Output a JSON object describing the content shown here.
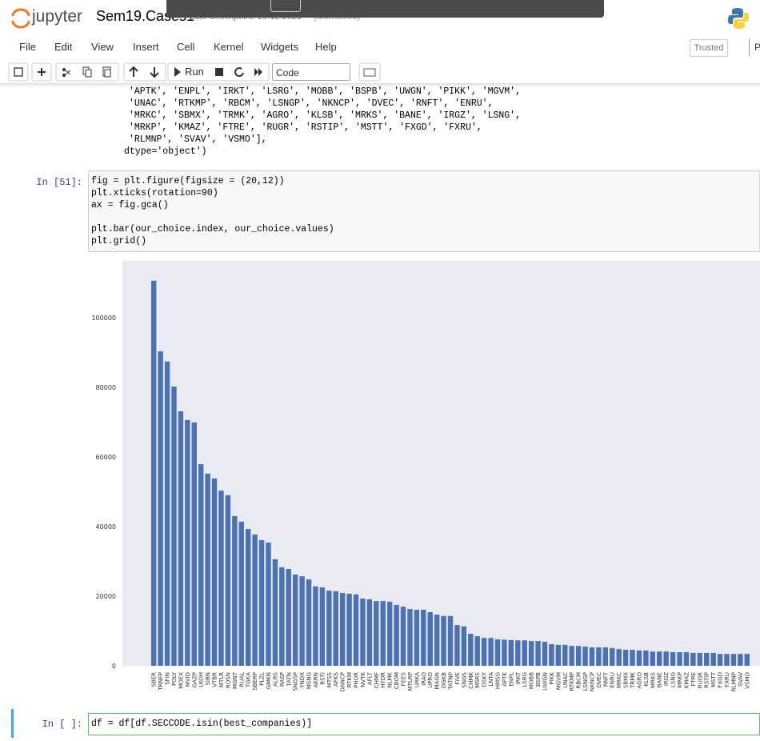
{
  "header": {
    "logo": "jupyter",
    "notebook_name": "Sem19.Cases1",
    "checkpoint": "Last Checkpoint: 29.12.2021",
    "autosave": "(autosaved)"
  },
  "menu": [
    "File",
    "Edit",
    "View",
    "Insert",
    "Cell",
    "Kernel",
    "Widgets",
    "Help"
  ],
  "trusted": "Trusted",
  "kernel_short": "P",
  "toolbar": {
    "run": "Run",
    "cell_type": "Code"
  },
  "output_text": [
    "'APTK', 'ENPL', 'IRKT', 'LSRG', 'MOBB', 'BSPB', 'UWGN', 'PIKK', 'MGVM',",
    "'UNAC', 'RTKMP', 'RBCM', 'LSNGP', 'NKNCP', 'DVEC', 'RNFT', 'ENRU',",
    "'MRKC', 'SBMX', 'TRMK', 'AGRO', 'KLSB', 'MRKS', 'BANE', 'IRGZ', 'LSNG',",
    "'MRKP', 'KMAZ', 'FTRE', 'RUGR', 'RSTIP', 'MSTT', 'FXGD', 'FXRU',",
    "'RLMNP', 'SVAV', 'VSMO'],",
    "dtype='object')"
  ],
  "cell_51": {
    "prompt": "In [51]:",
    "code": [
      "fig = plt.figure(figsize = (20,12))",
      "plt.xticks(rotation=90)",
      "ax = fig.gca()",
      "",
      "plt.bar(our_choice.index, our_choice.values)",
      "plt.grid()"
    ]
  },
  "cell_next": {
    "prompt": "In [ ]:",
    "code": [
      "df = df[df.SECCODE.isin(best_companies)]"
    ]
  },
  "chart_data": {
    "type": "bar",
    "color": "#4c72b0",
    "grid": false,
    "categories": [
      "SBER",
      "TRNFP",
      "SFIN",
      "POLY",
      "MOEX",
      "MVID",
      "GAZP",
      "LKOH",
      "SIBN",
      "VTBR",
      "MTLR",
      "ROSN",
      "MGNT",
      "RUAL",
      "TGKA",
      "SBERP",
      "PLZL",
      "GMKN",
      "ALRS",
      "RASP",
      "TATN",
      "SNGSP",
      "YNDX",
      "MSNG",
      "AKRN",
      "RSTI",
      "MTSS",
      "AFKS",
      "DANCP",
      "RTKM",
      "PHOR",
      "NVTK",
      "AFLT",
      "CHMF",
      "HYDR",
      "NLMK",
      "CBOM",
      "FEES",
      "MTLRP",
      "URKA",
      "IRAO",
      "UPRO",
      "MAGN",
      "OGKB",
      "TATNP",
      "FIVE",
      "SNGS",
      "CHMK",
      "MSRS",
      "DSKY",
      "LNTA",
      "HMSG",
      "APTK",
      "ENPL",
      "IRKT",
      "LSRG",
      "MOBB",
      "BSPB",
      "UWGN",
      "PIKK",
      "MGVM",
      "UNAC",
      "RTKMP",
      "RBCM",
      "LSNGP",
      "NKNCP",
      "DVEC",
      "RNFT",
      "ENRU",
      "MRKC",
      "SBMX",
      "TRMK",
      "AGRO",
      "KLSB",
      "MRKS",
      "BANE",
      "IRGZ",
      "LSNG",
      "MRKP",
      "KMAZ",
      "FTRE",
      "RUGR",
      "RSTIP",
      "MSTT",
      "FXGD",
      "FXRU",
      "RLMNP",
      "SVAV",
      "VSMO"
    ],
    "values": [
      110600,
      90300,
      87400,
      80200,
      73100,
      70600,
      69900,
      57900,
      55200,
      53800,
      50300,
      49000,
      43000,
      41400,
      39300,
      37700,
      36100,
      35400,
      30600,
      28300,
      27800,
      26200,
      25700,
      24800,
      22800,
      22500,
      21600,
      21400,
      20900,
      20700,
      20500,
      19300,
      19100,
      18600,
      18600,
      18400,
      17500,
      17000,
      16300,
      16100,
      16100,
      15400,
      14700,
      14300,
      14300,
      11700,
      11300,
      9200,
      8500,
      8000,
      8000,
      7600,
      7500,
      7400,
      7300,
      7300,
      7100,
      7100,
      6900,
      6200,
      6000,
      6000,
      5700,
      5700,
      5500,
      5300,
      5300,
      5300,
      5100,
      4800,
      4600,
      4600,
      4400,
      4400,
      4100,
      4100,
      4100,
      3900,
      3900,
      3900,
      3700,
      3700,
      3700,
      3700,
      3400,
      3400,
      3400,
      3400,
      3400
    ],
    "ylim": [
      0,
      116300
    ],
    "yticks": [
      0,
      20000,
      40000,
      60000,
      80000,
      100000
    ]
  }
}
